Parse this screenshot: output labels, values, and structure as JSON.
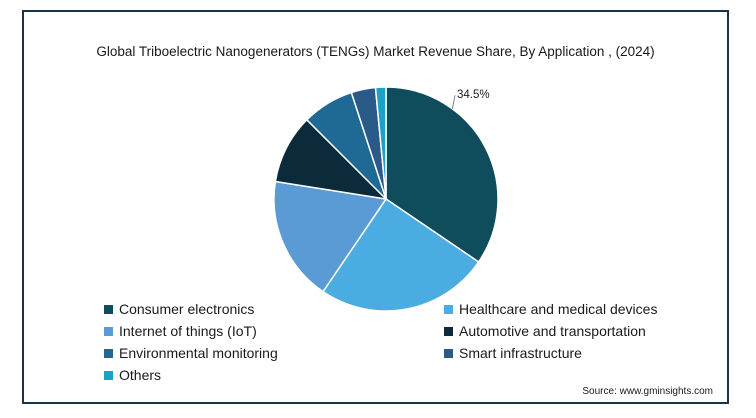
{
  "chart_data": {
    "type": "pie",
    "title": "Global Triboelectric Nanogenerators (TENGs) Market Revenue Share, By Application , (2024)",
    "categories": [
      "Consumer electronics",
      "Healthcare and medical devices",
      "Internet of things (IoT)",
      "Automotive and transportation",
      "Environmental monitoring",
      "Smart infrastructure",
      "Others"
    ],
    "values": [
      34.5,
      25.0,
      18.0,
      10.0,
      7.5,
      3.5,
      1.5
    ],
    "colors": [
      "#0f4c5c",
      "#4aace0",
      "#5b9bd5",
      "#0b2a3a",
      "#1e6a94",
      "#2a5a88",
      "#1ea0c8"
    ],
    "data_labels": [
      "34.5%",
      "",
      "",
      "",
      "",
      "",
      ""
    ],
    "legend_position": "bottom"
  },
  "source": "Source: www.gminsights.com"
}
